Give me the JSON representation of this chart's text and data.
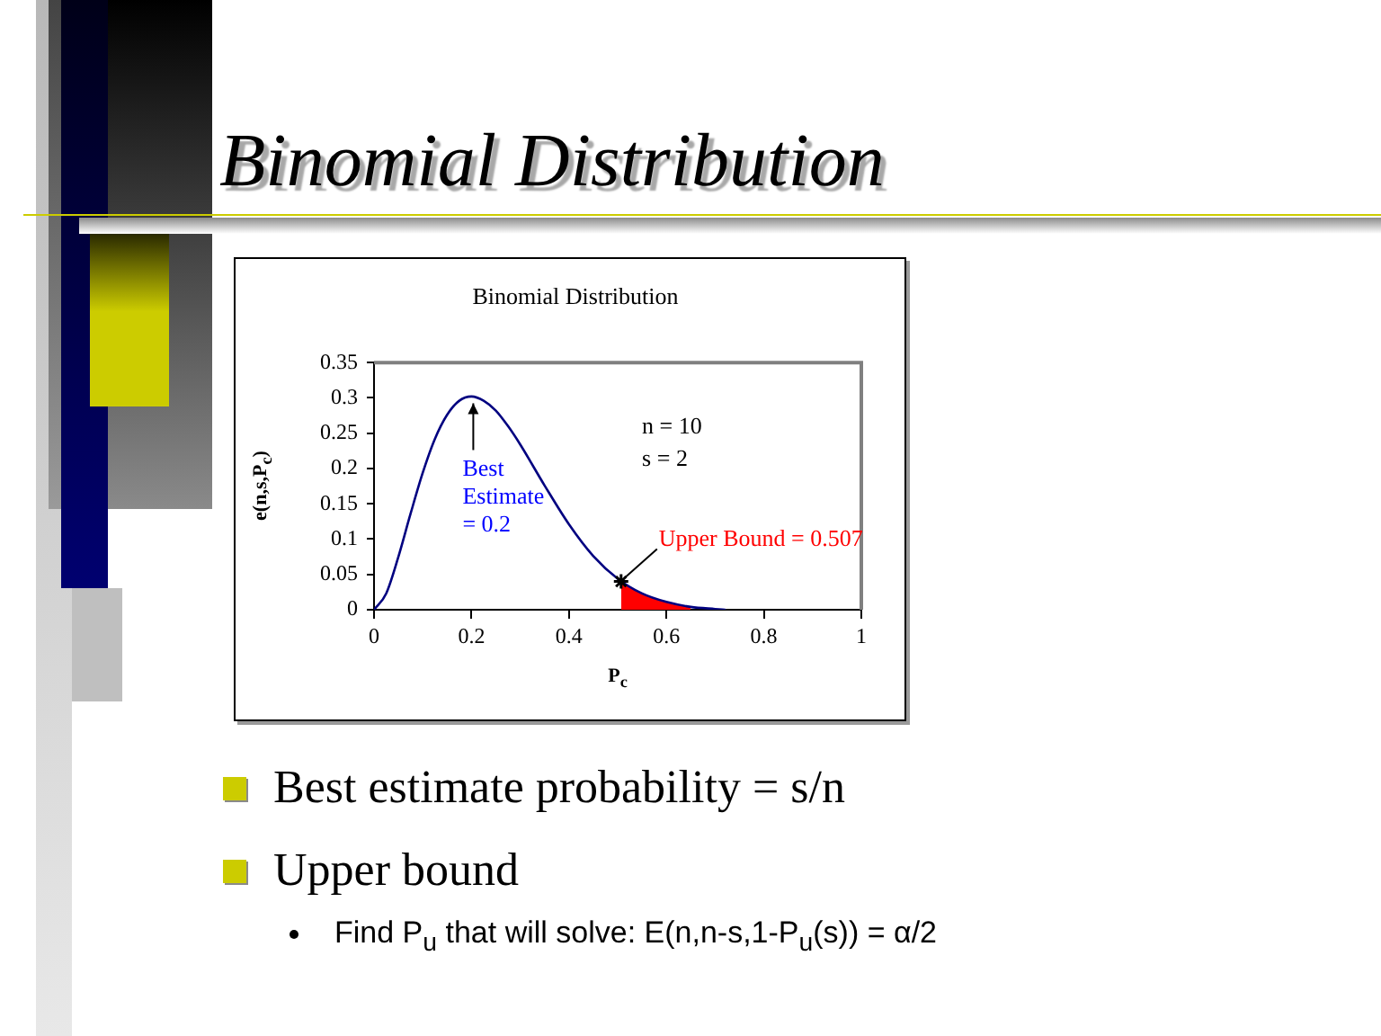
{
  "chart_data": {
    "type": "line",
    "title": "Binomial Distribution",
    "subtitle": "Binomial Distribution",
    "xlabel": "P$_{c}$",
    "ylabel": "e(n,s,P$_{c}$)",
    "series": [
      {
        "color": "#000080",
        "x": [
          0,
          0.025,
          0.05,
          0.075,
          0.1,
          0.125,
          0.15,
          0.175,
          0.2,
          0.225,
          0.25,
          0.275,
          0.3,
          0.35,
          0.4,
          0.45,
          0.5,
          0.55,
          0.6,
          0.65,
          0.7,
          0.72
        ],
        "values": [
          0,
          0.023,
          0.075,
          0.136,
          0.194,
          0.242,
          0.276,
          0.296,
          0.302,
          0.296,
          0.282,
          0.26,
          0.234,
          0.176,
          0.121,
          0.076,
          0.044,
          0.023,
          0.011,
          0.004,
          0.001,
          0
        ]
      },
      {
        "type": "area",
        "color": "#ff0000",
        "x": [
          0.507,
          0.55,
          0.6,
          0.65
        ],
        "values": [
          0.04,
          0.023,
          0.011,
          0.004
        ]
      },
      {
        "type": "scatter",
        "color": "#000000",
        "marker": "cross",
        "x": [
          0.507
        ],
        "values": [
          0.04
        ]
      }
    ],
    "xlim": [
      0,
      1
    ],
    "xticks": [
      0,
      0.2,
      0.4,
      0.6,
      0.8,
      1
    ],
    "ylim": [
      0,
      0.35
    ],
    "yticks": [
      0,
      0.05,
      0.1,
      0.15,
      0.2,
      0.25,
      0.3,
      0.35
    ],
    "annotations": [
      {
        "text": "Best Estimate = 0.2",
        "x": 0.2,
        "y": 0.3
      },
      {
        "text": "Upper Bound = 0.507",
        "x": 0.507,
        "y": 0.04
      },
      "n = 10",
      "s = 2",
      "Best estimate probability = s/n",
      "Upper bound",
      "Find P$_{u}$ that will solve: E(n,n-s,1-P$_{u}$(s)) = α/2"
    ]
  }
}
